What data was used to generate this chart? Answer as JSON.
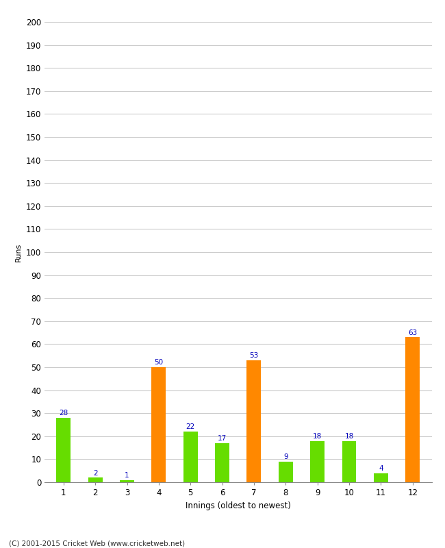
{
  "xlabel": "Innings (oldest to newest)",
  "ylabel": "Runs",
  "categories": [
    "1",
    "2",
    "3",
    "4",
    "5",
    "6",
    "7",
    "8",
    "9",
    "10",
    "11",
    "12"
  ],
  "values": [
    28,
    2,
    1,
    50,
    22,
    17,
    53,
    9,
    18,
    18,
    4,
    63
  ],
  "colors": [
    "#66dd00",
    "#66dd00",
    "#66dd00",
    "#ff8800",
    "#66dd00",
    "#66dd00",
    "#ff8800",
    "#66dd00",
    "#66dd00",
    "#66dd00",
    "#66dd00",
    "#ff8800"
  ],
  "ylim": [
    0,
    200
  ],
  "yticks": [
    0,
    10,
    20,
    30,
    40,
    50,
    60,
    70,
    80,
    90,
    100,
    110,
    120,
    130,
    140,
    150,
    160,
    170,
    180,
    190,
    200
  ],
  "label_color": "#0000bb",
  "label_fontsize": 7.5,
  "axis_fontsize": 8.5,
  "ylabel_fontsize": 8,
  "footer": "(C) 2001-2015 Cricket Web (www.cricketweb.net)",
  "background_color": "#ffffff",
  "grid_color": "#cccccc",
  "bar_width": 0.45
}
